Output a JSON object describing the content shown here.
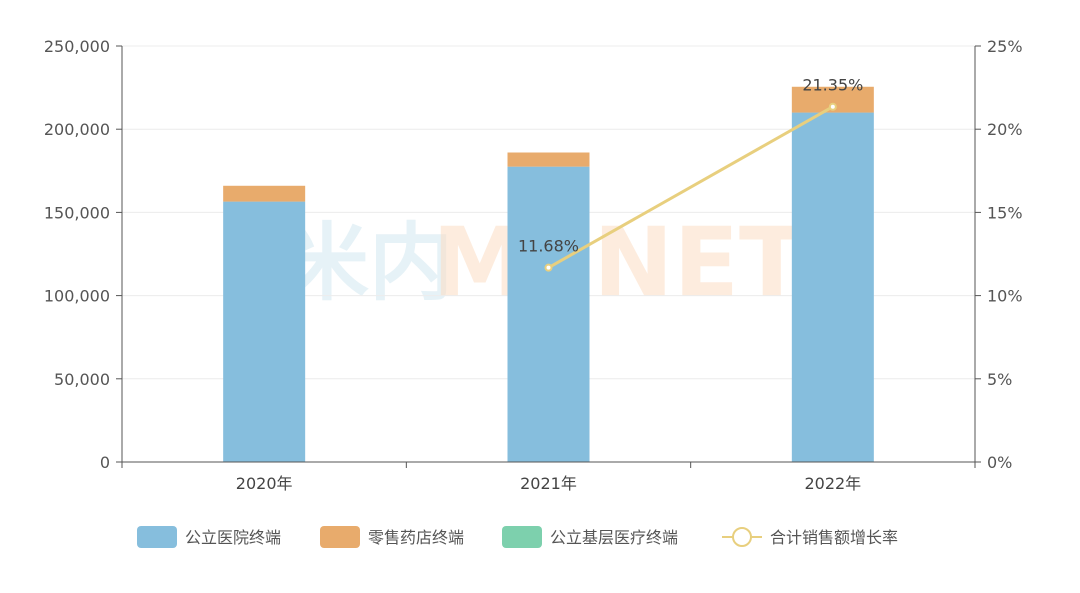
{
  "watermark": {
    "logo_glyph": "米内",
    "brand": "MENET"
  },
  "chart_data": {
    "type": "bar",
    "stacked": true,
    "categories": [
      "2020年",
      "2021年",
      "2022年"
    ],
    "series": [
      {
        "name": "公立医院终端",
        "kind": "bar",
        "axis": "left",
        "color": "#86bedd",
        "values": [
          156500,
          177500,
          210000
        ]
      },
      {
        "name": "零售药店终端",
        "kind": "bar",
        "axis": "left",
        "color": "#e8ab6c",
        "values": [
          9500,
          8500,
          15500
        ]
      },
      {
        "name": "公立基层医疗终端",
        "kind": "bar",
        "axis": "left",
        "color": "#7dd0ad",
        "values": [
          0,
          0,
          0
        ]
      },
      {
        "name": "合计销售额增长率",
        "kind": "line",
        "axis": "right",
        "color": "#e8cf7e",
        "values": [
          null,
          11.68,
          21.35
        ],
        "labels": [
          "",
          "11.68%",
          "21.35%"
        ]
      }
    ],
    "y_left": {
      "min": 0,
      "max": 250000,
      "ticks": [
        "0",
        "50,000",
        "100,000",
        "150,000",
        "200,000",
        "250,000"
      ]
    },
    "y_right": {
      "min": 0,
      "max": 25,
      "ticks": [
        "0%",
        "5%",
        "10%",
        "15%",
        "20%",
        "25%"
      ]
    },
    "legend_position": "bottom",
    "grid": true
  }
}
